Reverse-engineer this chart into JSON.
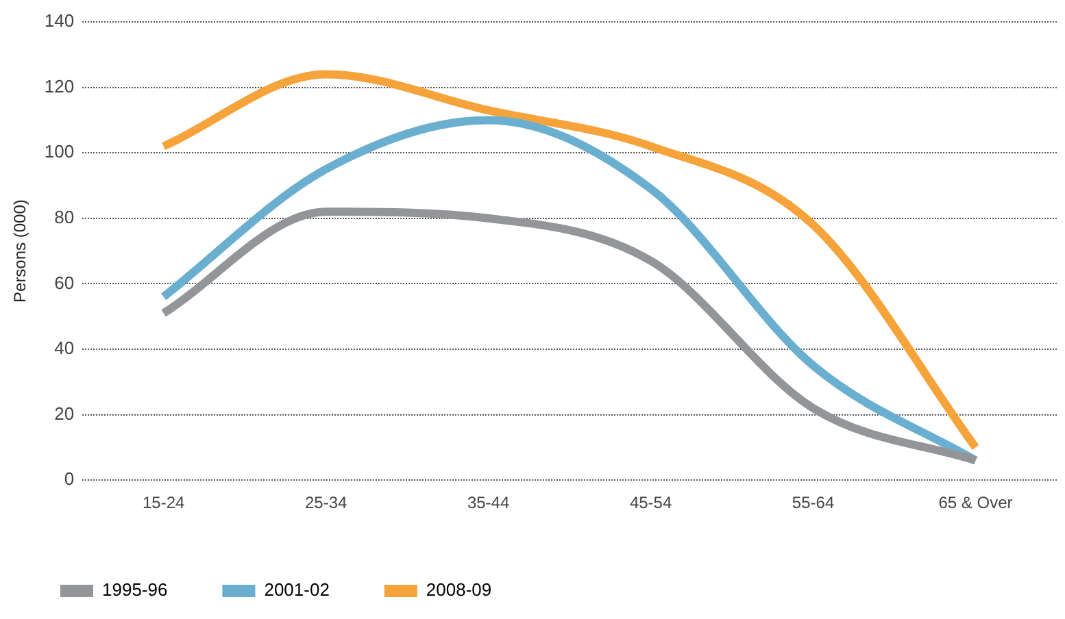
{
  "chart_data": {
    "type": "line",
    "ylabel": "Persons (000)",
    "categories": [
      "15-24",
      "25-34",
      "35-44",
      "45-54",
      "55-64",
      "65 & Over"
    ],
    "series": [
      {
        "name": "1995-96",
        "color": "#939598",
        "values": [
          51,
          82,
          80,
          67,
          22,
          6
        ]
      },
      {
        "name": "2001-02",
        "color": "#6aafcf",
        "values": [
          56,
          95,
          110,
          89,
          35,
          6
        ]
      },
      {
        "name": "2008-09",
        "color": "#f5a33a",
        "values": [
          102,
          124,
          113,
          102,
          78,
          10
        ]
      }
    ],
    "ylim": [
      0,
      140
    ],
    "yticks": [
      0,
      20,
      40,
      60,
      80,
      100,
      120,
      140
    ],
    "grid": "y",
    "legend": "bottom",
    "marker": "none",
    "line_style": "solid"
  }
}
